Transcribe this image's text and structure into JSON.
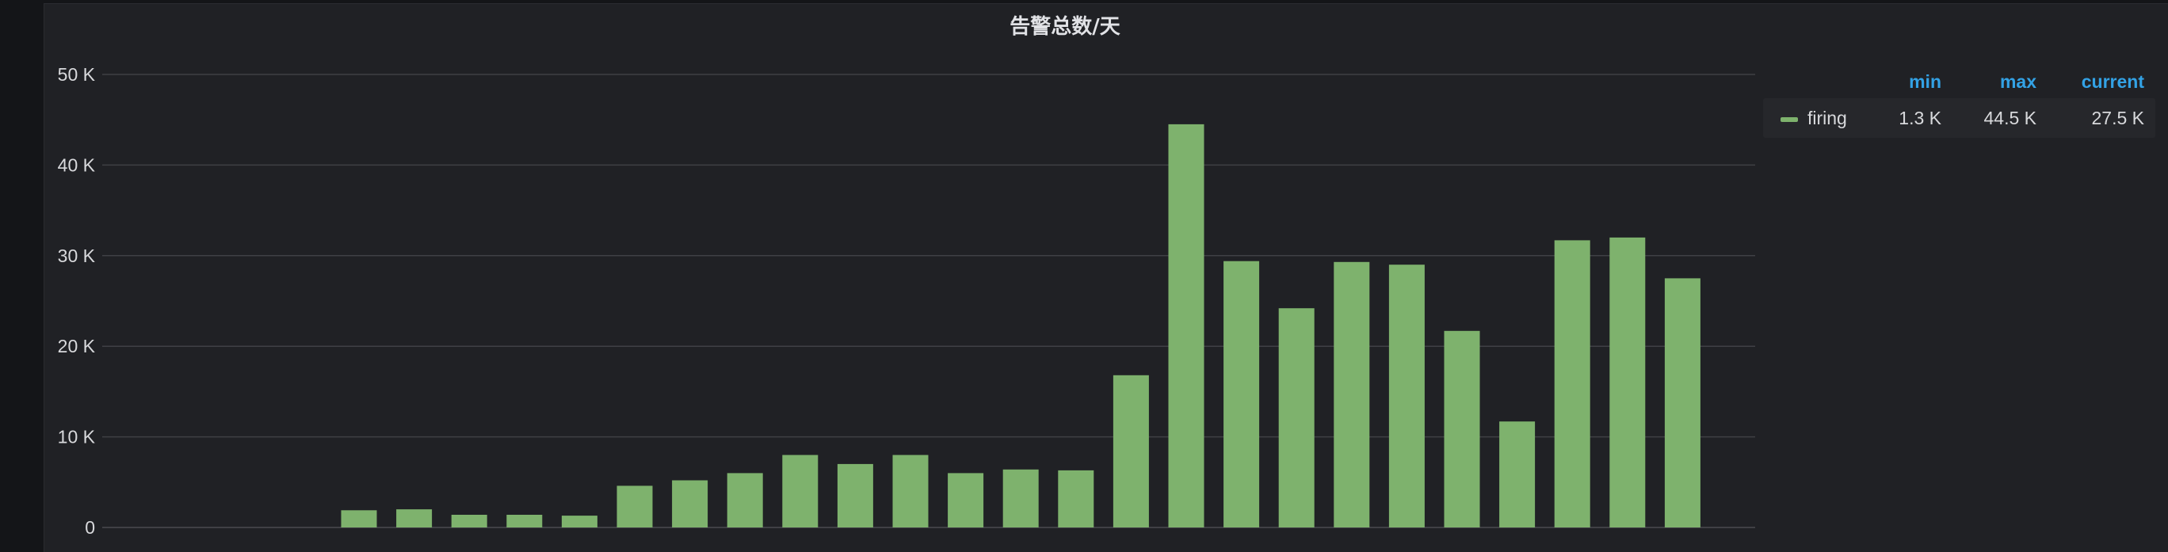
{
  "panel": {
    "title": "告警总数/天"
  },
  "legend": {
    "headers": {
      "min": "min",
      "max": "max",
      "current": "current"
    },
    "rows": [
      {
        "name": "firing",
        "min": "1.3 K",
        "max": "44.5 K",
        "current": "27.5 K",
        "color": "#7eb26d"
      }
    ]
  },
  "chart_data": {
    "type": "bar",
    "title": "告警总数/天",
    "ylim": [
      0,
      50000
    ],
    "yticks": [
      {
        "value": 0,
        "label": "0"
      },
      {
        "value": 10000,
        "label": "10 K"
      },
      {
        "value": 20000,
        "label": "20 K"
      },
      {
        "value": 30000,
        "label": "30 K"
      },
      {
        "value": 40000,
        "label": "40 K"
      },
      {
        "value": 50000,
        "label": "50 K"
      }
    ],
    "grid": true,
    "legend_position": "right",
    "series": [
      {
        "name": "firing",
        "color": "#7eb26d",
        "values": [
          0,
          0,
          0,
          0,
          0,
          1900,
          2000,
          1400,
          1400,
          1300,
          4600,
          5200,
          6000,
          8000,
          7000,
          8000,
          6000,
          6400,
          6300,
          16800,
          44500,
          29400,
          24200,
          29300,
          29000,
          21700,
          11700,
          31700,
          32000,
          27500
        ]
      }
    ]
  }
}
